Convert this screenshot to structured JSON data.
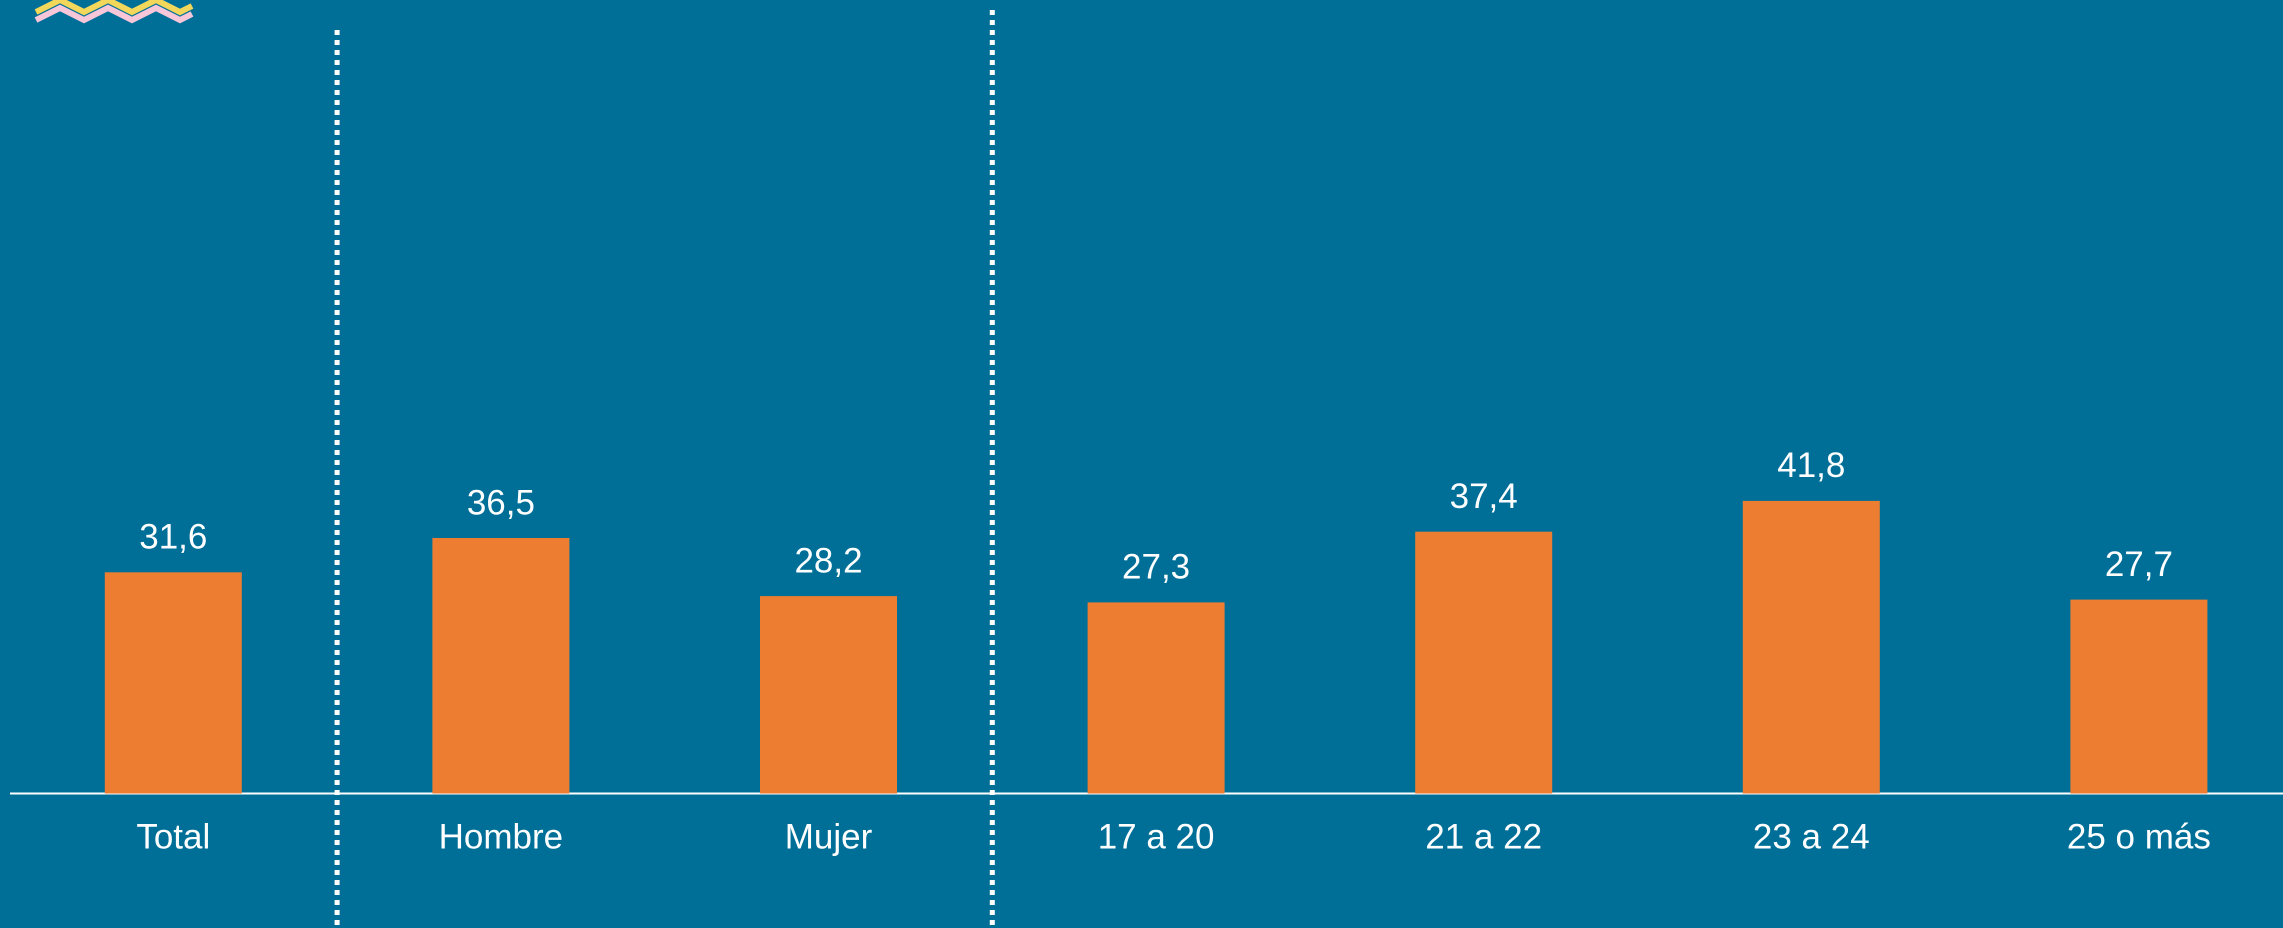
{
  "chart_data": {
    "type": "bar",
    "categories": [
      "Total",
      "Hombre",
      "Mujer",
      "17 a 20",
      "21 a 22",
      "23 a 24",
      "25 o más"
    ],
    "values": [
      31.6,
      36.5,
      28.2,
      27.3,
      37.4,
      41.8,
      27.7
    ],
    "value_labels": [
      "31,6",
      "36,5",
      "28,2",
      "27,3",
      "37,4",
      "41,8",
      "27,7"
    ],
    "color": "#ed7d31",
    "ylim": [
      0,
      100
    ]
  }
}
